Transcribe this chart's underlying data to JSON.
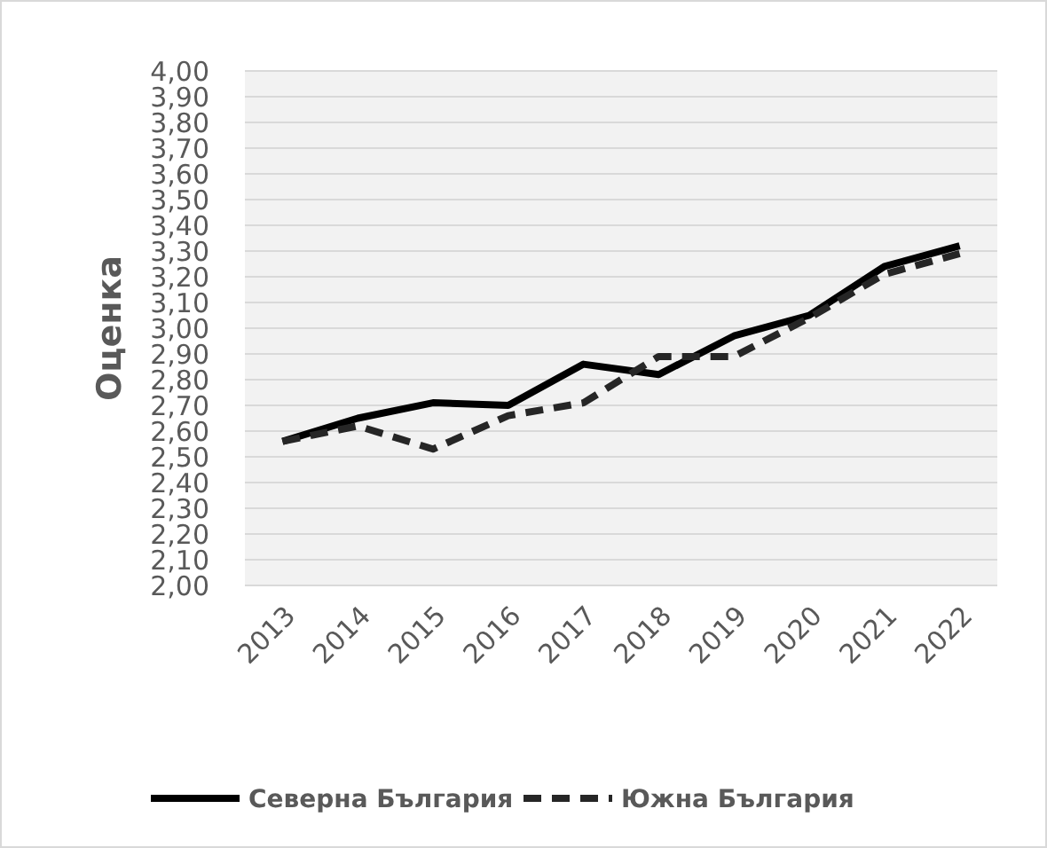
{
  "chart_data": {
    "type": "line",
    "ylabel": "Оценка",
    "categories": [
      "2013",
      "2014",
      "2015",
      "2016",
      "2017",
      "2018",
      "2019",
      "2020",
      "2021",
      "2022"
    ],
    "series": [
      {
        "name": "Северна България",
        "color": "#000000",
        "line_style": "solid",
        "values": [
          2.56,
          2.65,
          2.71,
          2.7,
          2.86,
          2.82,
          2.97,
          3.05,
          3.24,
          3.32
        ]
      },
      {
        "name": "Южна България",
        "color": "#262626",
        "line_style": "dashed",
        "values": [
          2.56,
          2.62,
          2.53,
          2.66,
          2.71,
          2.89,
          2.89,
          3.04,
          3.21,
          3.29
        ]
      }
    ],
    "ylim": [
      2,
      4
    ],
    "yticks": [
      {
        "value": 2,
        "label": "2,00"
      },
      {
        "value": 2.1,
        "label": "2,10"
      },
      {
        "value": 2.2,
        "label": "2,20"
      },
      {
        "value": 2.3,
        "label": "2,30"
      },
      {
        "value": 2.4,
        "label": "2,40"
      },
      {
        "value": 2.5,
        "label": "2,50"
      },
      {
        "value": 2.6,
        "label": "2,60"
      },
      {
        "value": 2.7,
        "label": "2,70"
      },
      {
        "value": 2.8,
        "label": "2,80"
      },
      {
        "value": 2.9,
        "label": "2,90"
      },
      {
        "value": 3,
        "label": "3,00"
      },
      {
        "value": 3.1,
        "label": "3,10"
      },
      {
        "value": 3.2,
        "label": "3,20"
      },
      {
        "value": 3.3,
        "label": "3,30"
      },
      {
        "value": 3.4,
        "label": "3,40"
      },
      {
        "value": 3.5,
        "label": "3,50"
      },
      {
        "value": 3.6,
        "label": "3,60"
      },
      {
        "value": 3.7,
        "label": "3,70"
      },
      {
        "value": 3.8,
        "label": "3,80"
      },
      {
        "value": 3.9,
        "label": "3,90"
      },
      {
        "value": 4,
        "label": "4,00"
      }
    ],
    "grid": "y",
    "legend": "bottom",
    "marker": "none"
  }
}
